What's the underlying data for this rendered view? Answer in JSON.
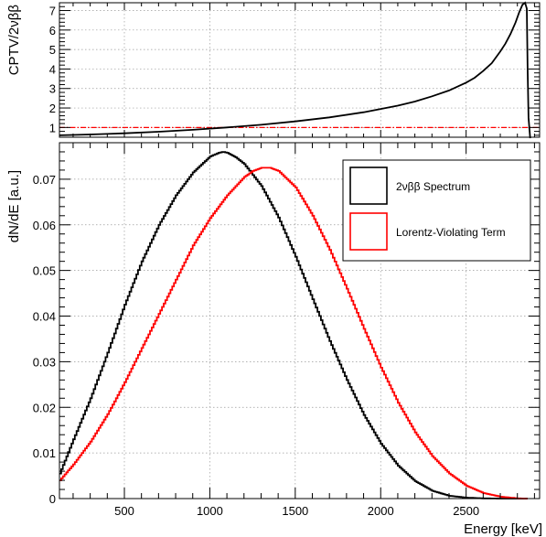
{
  "chart_data": [
    {
      "type": "line",
      "ylabel": "CPTV/2νββ",
      "xlim": [
        120,
        2930
      ],
      "ylim": [
        0.5,
        7.4
      ],
      "grid": true,
      "yticks": [
        1,
        2,
        3,
        4,
        5,
        6,
        7
      ],
      "ytick_labels": [
        "1",
        "2",
        "3",
        "4",
        "5",
        "6",
        "7"
      ],
      "reference_line": {
        "y": 1,
        "color": "#ff0000",
        "style": "dash-dot"
      },
      "series": [
        {
          "color": "#000000",
          "x": [
            120,
            300,
            500,
            700,
            900,
            1100,
            1300,
            1500,
            1700,
            1900,
            2100,
            2200,
            2300,
            2400,
            2500,
            2550,
            2600,
            2650,
            2700,
            2730,
            2760,
            2790,
            2810,
            2830,
            2845,
            2855,
            2860,
            2865,
            2875
          ],
          "y": [
            0.6,
            0.64,
            0.7,
            0.78,
            0.88,
            1.0,
            1.14,
            1.31,
            1.52,
            1.78,
            2.12,
            2.33,
            2.6,
            2.9,
            3.3,
            3.55,
            3.9,
            4.3,
            4.9,
            5.3,
            5.8,
            6.4,
            6.9,
            7.3,
            7.4,
            7.1,
            4.0,
            1.5,
            0.45
          ]
        }
      ]
    },
    {
      "type": "line",
      "xlabel": "Energy [keV]",
      "ylabel": "dN/dE [a.u.]",
      "xlim": [
        120,
        2930
      ],
      "ylim": [
        0,
        0.078
      ],
      "grid": true,
      "xticks": [
        500,
        1000,
        1500,
        2000,
        2500
      ],
      "xtick_labels": [
        "500",
        "1000",
        "1500",
        "2000",
        "2500"
      ],
      "yticks": [
        0,
        0.01,
        0.02,
        0.03,
        0.04,
        0.05,
        0.06,
        0.07
      ],
      "ytick_labels": [
        "0",
        "0.01",
        "0.02",
        "0.03",
        "0.04",
        "0.05",
        "0.06",
        "0.07"
      ],
      "legend_position": "top-right",
      "series": [
        {
          "name": "2νββ Spectrum",
          "color": "#000000",
          "x": [
            120,
            200,
            300,
            400,
            500,
            600,
            700,
            800,
            900,
            1000,
            1050,
            1075,
            1100,
            1150,
            1200,
            1300,
            1400,
            1500,
            1600,
            1700,
            1800,
            1900,
            2000,
            2100,
            2200,
            2300,
            2400,
            2500,
            2600,
            2700,
            2800,
            2850
          ],
          "y": [
            0.0055,
            0.013,
            0.022,
            0.032,
            0.0425,
            0.052,
            0.06,
            0.0665,
            0.0715,
            0.075,
            0.0758,
            0.076,
            0.0758,
            0.0748,
            0.0733,
            0.0685,
            0.0616,
            0.053,
            0.0437,
            0.0345,
            0.026,
            0.0183,
            0.012,
            0.0072,
            0.0038,
            0.0017,
            0.0006,
            0.0002,
            5e-05,
            0,
            0,
            0
          ]
        },
        {
          "name": "Lorentz-Violating Term",
          "color": "#ff0000",
          "x": [
            120,
            200,
            300,
            400,
            500,
            600,
            700,
            800,
            900,
            1000,
            1100,
            1200,
            1250,
            1300,
            1350,
            1400,
            1500,
            1600,
            1700,
            1800,
            1900,
            2000,
            2100,
            2200,
            2300,
            2400,
            2500,
            2600,
            2700,
            2800,
            2850
          ],
          "y": [
            0.004,
            0.0075,
            0.0125,
            0.0185,
            0.0255,
            0.033,
            0.0405,
            0.048,
            0.0555,
            0.0615,
            0.0665,
            0.0705,
            0.0718,
            0.0725,
            0.0725,
            0.0718,
            0.0682,
            0.062,
            0.0545,
            0.046,
            0.0372,
            0.0287,
            0.021,
            0.0145,
            0.0093,
            0.0055,
            0.0028,
            0.0012,
            0.0004,
            5e-05,
            0
          ]
        }
      ]
    }
  ]
}
